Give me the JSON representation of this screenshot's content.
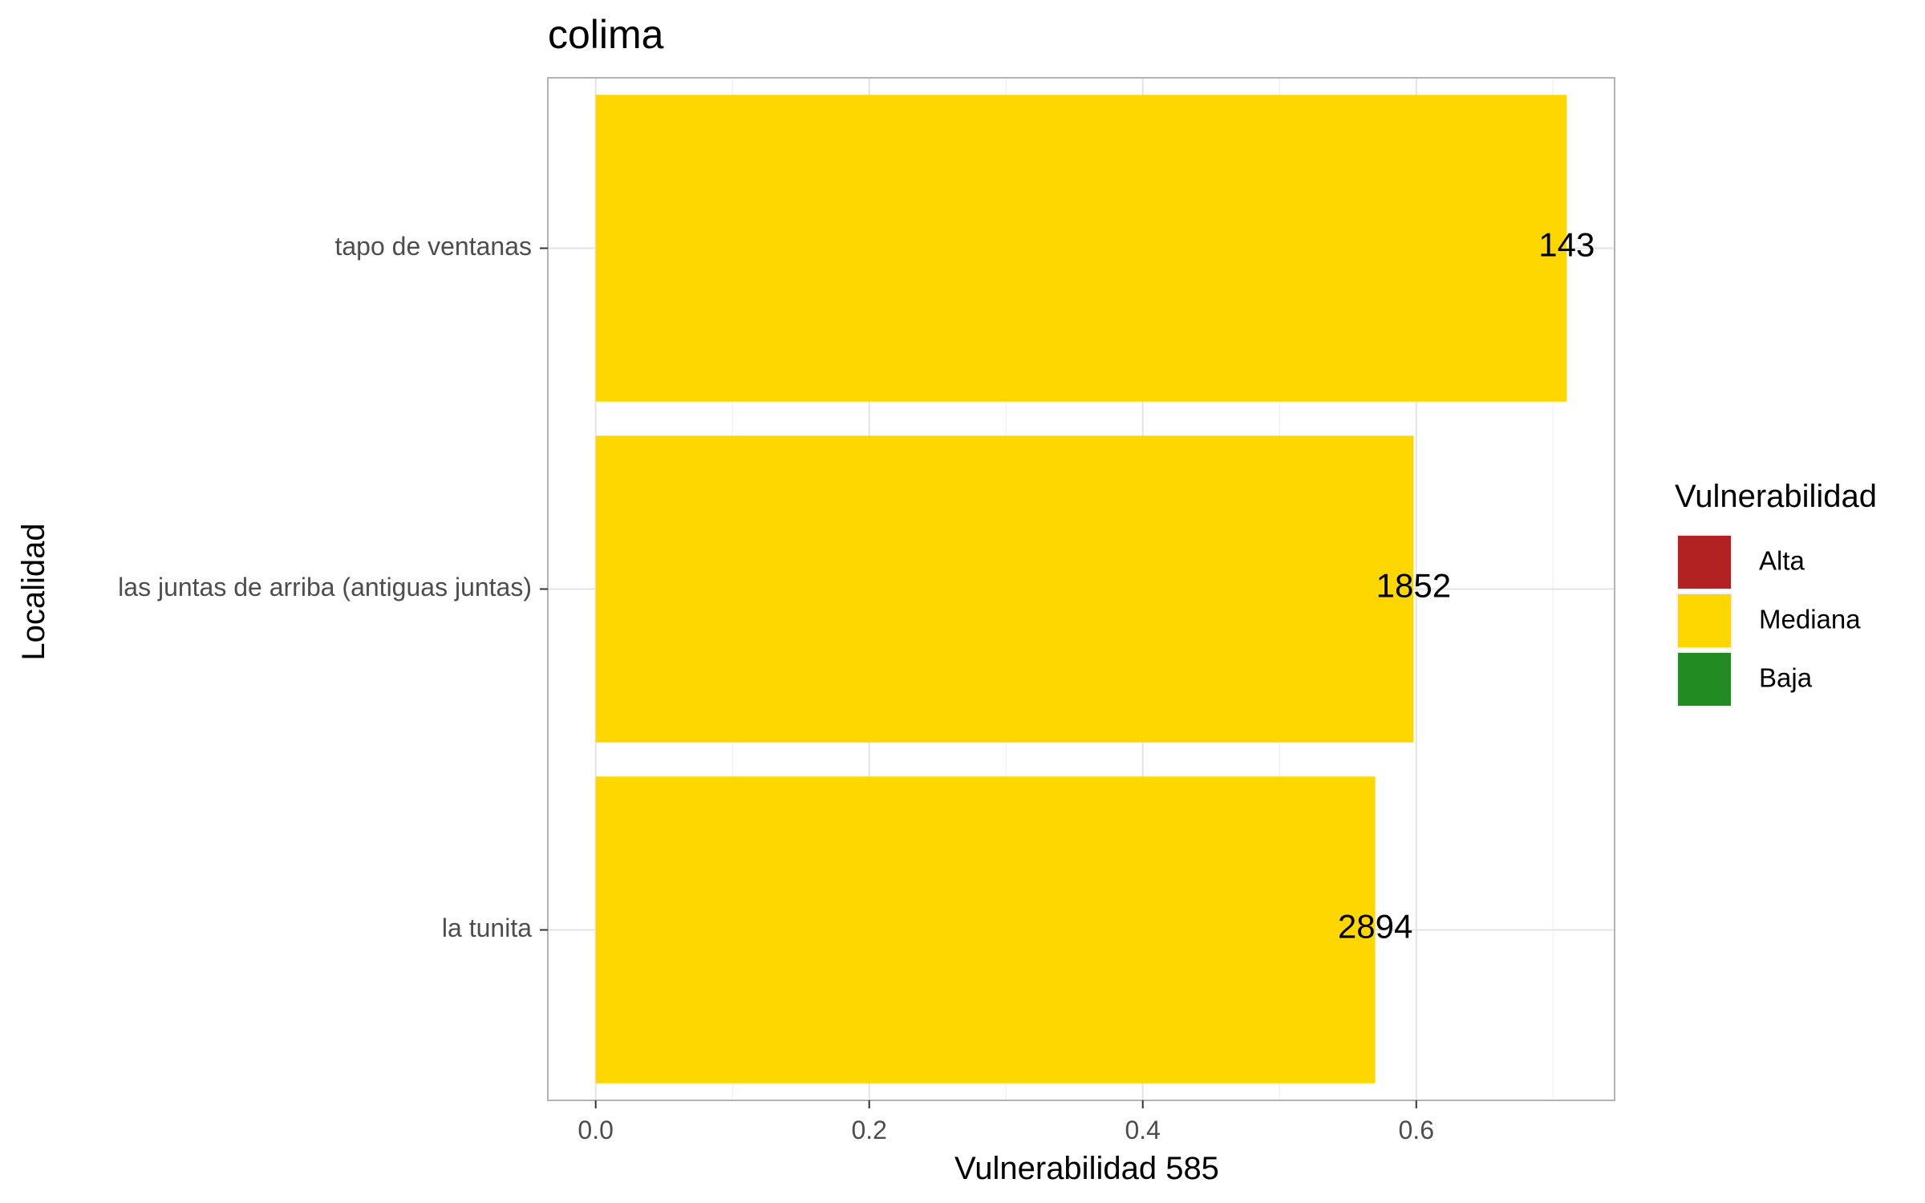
{
  "chart_data": {
    "type": "bar",
    "orientation": "horizontal",
    "title": "colima",
    "xlabel": "Vulnerabilidad 585",
    "ylabel": "Localidad",
    "categories": [
      "tapo de ventanas",
      "las juntas de arriba (antiguas juntas)",
      "la tunita"
    ],
    "values": [
      0.71,
      0.598,
      0.57
    ],
    "data_labels": [
      "143",
      "1852",
      "2894"
    ],
    "bar_color": "#FFD700",
    "xlim": [
      -0.035,
      0.745
    ],
    "x_ticks": [
      0.0,
      0.2,
      0.4,
      0.6
    ],
    "x_tick_labels": [
      "0.0",
      "0.2",
      "0.4",
      "0.6"
    ],
    "grid": true,
    "legend": {
      "title": "Vulnerabilidad",
      "position": "right",
      "items": [
        {
          "label": "Alta",
          "color": "#B22222"
        },
        {
          "label": "Mediana",
          "color": "#FFD700"
        },
        {
          "label": "Baja",
          "color": "#228B22"
        }
      ]
    }
  }
}
